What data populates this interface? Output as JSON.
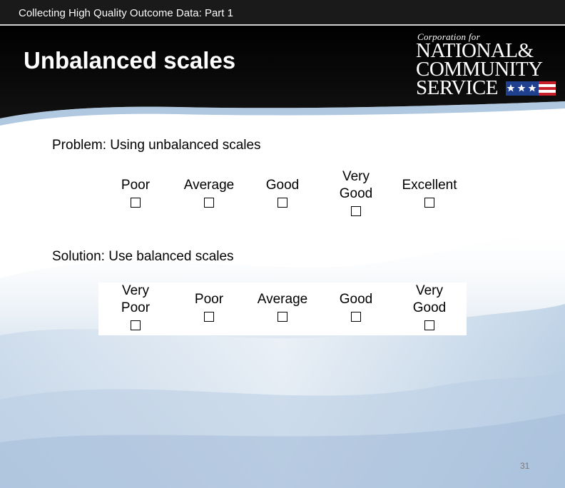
{
  "header": {
    "course_title": "Collecting High Quality Outcome Data: Part 1",
    "slide_title": "Unbalanced scales"
  },
  "logo": {
    "line0": "Corporation for",
    "line1": "NATIONAL&",
    "line2": "COMMUNITY",
    "line3": "SERVICE",
    "icon": "flag-stars-stripes-icon"
  },
  "problem": {
    "heading": "Problem: Using unbalanced scales",
    "options": [
      {
        "label": "Poor"
      },
      {
        "label": "Average"
      },
      {
        "label": "Good"
      },
      {
        "label": "Very\nGood"
      },
      {
        "label": "Excellent"
      }
    ]
  },
  "solution": {
    "heading": "Solution: Use balanced scales",
    "options": [
      {
        "label": "Very\nPoor"
      },
      {
        "label": "Poor"
      },
      {
        "label": "Average"
      },
      {
        "label": "Good"
      },
      {
        "label": "Very\nGood"
      }
    ]
  },
  "footer": {
    "page_number": "31"
  },
  "colors": {
    "header_black": "#000000",
    "wave_blue": "#b9cde3",
    "page_number_gray": "#7a7a7a"
  }
}
